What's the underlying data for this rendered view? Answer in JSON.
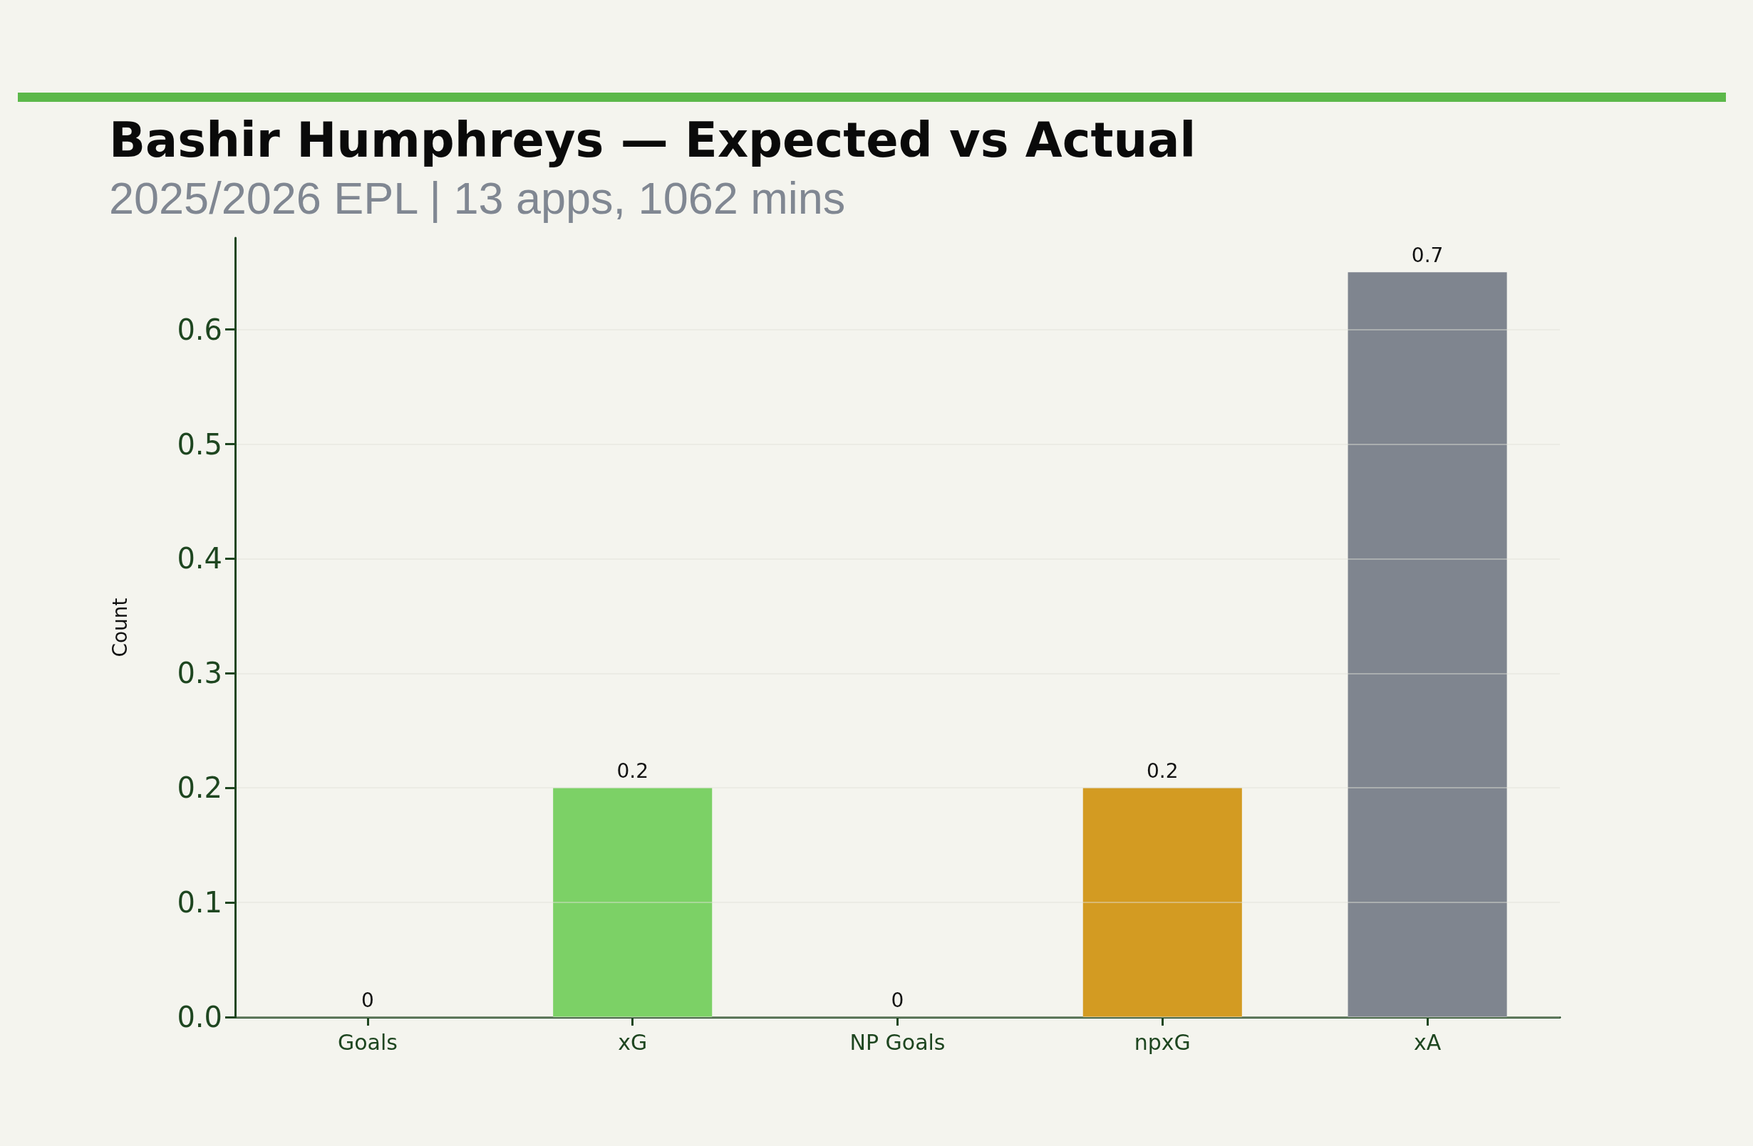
{
  "chart_data": {
    "type": "bar",
    "title": "Bashir Humphreys — Expected vs Actual",
    "subtitle": "2025/2026 EPL | 13 apps, 1062 mins",
    "ylabel": "Count",
    "categories": [
      "Goals",
      "xG",
      "NP Goals",
      "npxG",
      "xA"
    ],
    "values": [
      0,
      0.2,
      0,
      0.2,
      0.65
    ],
    "colors": [
      "#5cb84a",
      "#7cd166",
      "#5cb84a",
      "#d39b22",
      "#7f858f"
    ],
    "value_labels": [
      "0",
      "0.2",
      "0",
      "0.2",
      "0.7"
    ],
    "ylim": [
      0,
      0.68
    ],
    "yticks": [
      {
        "value": 0,
        "label": "0.0"
      },
      0.1,
      0.2,
      0.3,
      0.4,
      0.5,
      0.6
    ],
    "grid": "y"
  }
}
